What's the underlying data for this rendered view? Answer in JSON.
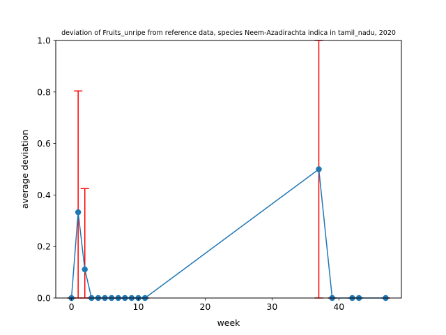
{
  "chart_data": {
    "type": "line",
    "title": "deviation of Fruits_unripe from reference data, species Neem-Azadirachta indica in tamil_nadu, 2020",
    "xlabel": "week",
    "ylabel": "average deviation",
    "xlim": [
      -2.35,
      49.35
    ],
    "ylim": [
      0,
      1.0
    ],
    "x_ticks": [
      0,
      10,
      20,
      30,
      40
    ],
    "x_tick_labels": [
      "0",
      "10",
      "20",
      "30",
      "40"
    ],
    "y_ticks": [
      0.0,
      0.2,
      0.4,
      0.6,
      0.8,
      1.0
    ],
    "y_tick_labels": [
      "0.0",
      "0.2",
      "0.4",
      "0.6",
      "0.8",
      "1.0"
    ],
    "grid": false,
    "line_color": "#1f77b4",
    "errorbar_color": "#ff0000",
    "series": [
      {
        "x": [
          0,
          1,
          2,
          3,
          4,
          5,
          6,
          7,
          8,
          9,
          10,
          11,
          37,
          39,
          42,
          43,
          47
        ],
        "y": [
          0,
          0.333,
          0.111,
          0,
          0,
          0,
          0,
          0,
          0,
          0,
          0,
          0,
          0.5,
          0,
          0,
          0,
          0
        ],
        "err": [
          0,
          0.471,
          0.314,
          0,
          0,
          0,
          0,
          0,
          0,
          0,
          0,
          0,
          0.5,
          0,
          0,
          0,
          0
        ]
      }
    ]
  }
}
